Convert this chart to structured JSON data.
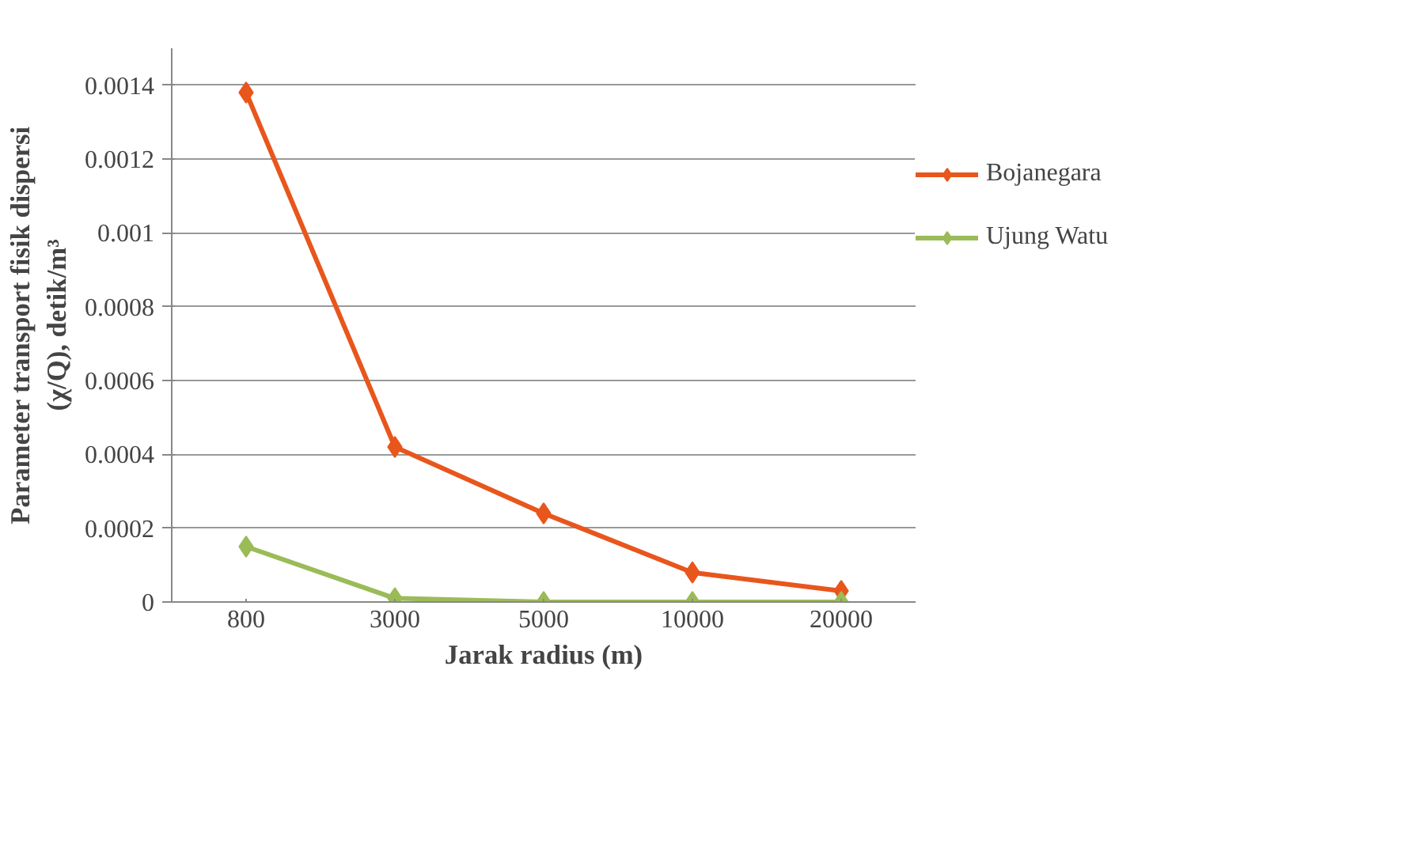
{
  "chart_data": {
    "type": "line",
    "xlabel": "Jarak radius (m)",
    "ylabel": "Parameter transport fisik dispersi\n(χ/Q), detik/m³",
    "categories": [
      "800",
      "3000",
      "5000",
      "10000",
      "20000"
    ],
    "series": [
      {
        "name": "Bojanegara",
        "color": "#e8561c",
        "values": [
          0.00138,
          0.00042,
          0.00024,
          8e-05,
          3e-05
        ]
      },
      {
        "name": "Ujung Watu",
        "color": "#9bbb59",
        "values": [
          0.00015,
          1e-05,
          0,
          0,
          0
        ]
      }
    ],
    "ylim": [
      0,
      0.0015
    ],
    "yticks": [
      0,
      0.0002,
      0.0004,
      0.0006,
      0.0008,
      0.001,
      0.0012,
      0.0014
    ],
    "grid": "y",
    "legend": "right",
    "marker": "diamond",
    "line_style": "solid"
  }
}
